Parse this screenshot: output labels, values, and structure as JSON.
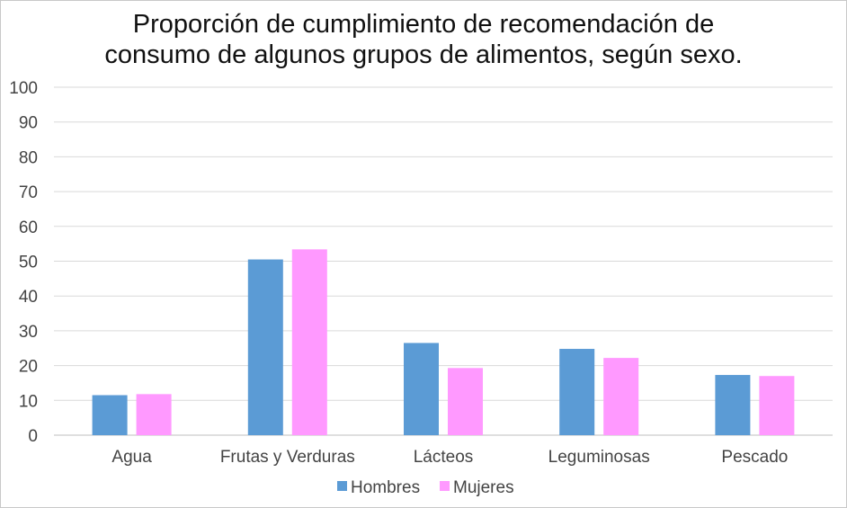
{
  "chart_data": {
    "type": "bar",
    "title_lines": [
      "Proporción de cumplimiento de recomendación de",
      "consumo de algunos grupos de alimentos, según sexo."
    ],
    "categories": [
      "Agua",
      "Frutas y Verduras",
      "Lácteos",
      "Leguminosas",
      "Pescado"
    ],
    "series": [
      {
        "name": "Hombres",
        "color": "#5b9bd5",
        "values": [
          11.5,
          50.5,
          26.5,
          24.8,
          17.3
        ]
      },
      {
        "name": "Mujeres",
        "color": "#ff99ff",
        "values": [
          11.8,
          53.4,
          19.3,
          22.2,
          17.0
        ]
      }
    ],
    "ylim": [
      0,
      100
    ],
    "yticks": [
      0,
      10,
      20,
      30,
      40,
      50,
      60,
      70,
      80,
      90,
      100
    ],
    "xlabel": "",
    "ylabel": "",
    "grid": true,
    "legend_position": "bottom"
  }
}
